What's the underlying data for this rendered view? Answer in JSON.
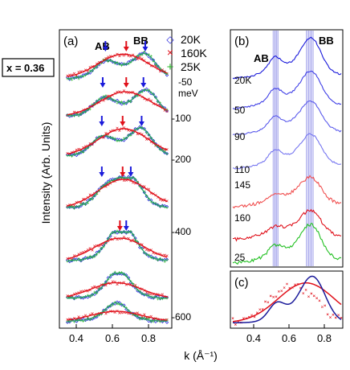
{
  "chart_data": [
    {
      "panel": "(a)",
      "type": "scatter",
      "xlabel": "k (Å⁻¹)",
      "ylabel": "Intensity (Arb. Units)",
      "x_ticks": [
        "0.4",
        "0.6",
        "0.8"
      ],
      "xlim": [
        0.3,
        0.92
      ],
      "box_label": "x = 0.36",
      "peak_labels": [
        "AB",
        "BB"
      ],
      "legend": [
        {
          "label": "20K",
          "color": "#1a1adb",
          "marker": "diamond"
        },
        {
          "label": "160K",
          "color": "#e0101a",
          "marker": "x"
        },
        {
          "label": "25K",
          "color": "#22b422",
          "marker": "+"
        }
      ],
      "energy_unit": "meV",
      "energies": [
        {
          "label": "-50",
          "ab": 0.54,
          "bb": 0.76,
          "red": 0.64,
          "ab_arrow": 0.54,
          "bb_arrow": 0.76,
          "red_arrow": 0.655,
          "amp20": 1.0,
          "amp160": 1.0
        },
        {
          "label": "-100",
          "ab": 0.53,
          "bb": 0.77,
          "red": 0.65,
          "ab_arrow": 0.525,
          "bb_arrow": 0.75,
          "red_arrow": 0.655,
          "amp20": 1.0,
          "amp160": 0.95
        },
        {
          "label": "-200",
          "ab": 0.52,
          "bb": 0.74,
          "red": 0.64,
          "ab_arrow": 0.52,
          "bb_arrow": 0.74,
          "red_arrow": 0.635,
          "amp20": 1.0,
          "amp160": 1.0
        },
        {
          "label": "-400",
          "ab": 0.55,
          "bb": 0.68,
          "red": 0.64,
          "ab_arrow": 0.52,
          "bb_arrow": 0.68,
          "red_arrow": 0.635,
          "amp20": 1.0,
          "amp160": 1.0
        },
        {
          "label": "-400",
          "ab": 0.6,
          "bb": 0.65,
          "red": 0.62,
          "ab_arrow": null,
          "bb_arrow": 0.655,
          "red_arrow": 0.62,
          "amp20": 0.9,
          "amp160": 0.85
        },
        {
          "label": "-600",
          "ab": 0.6,
          "bb": 0.62,
          "red": 0.6,
          "ab_arrow": null,
          "bb_arrow": null,
          "red_arrow": null,
          "amp20": 0.75,
          "amp160": 0.7
        },
        {
          "label": "",
          "ab": 0.6,
          "bb": 0.6,
          "red": 0.6,
          "ab_arrow": null,
          "bb_arrow": null,
          "red_arrow": null,
          "amp20": 0.6,
          "amp160": 0.55
        }
      ]
    },
    {
      "panel": "(b)",
      "type": "line",
      "peak_labels": [
        "AB",
        "BB"
      ],
      "ab_band": [
        0.53,
        0.56
      ],
      "bb_band": [
        0.72,
        0.76
      ],
      "xlim": [
        0.3,
        0.92
      ],
      "curves": [
        {
          "label": "20K",
          "color": "#1a1adb",
          "ab": 1.0,
          "bb": 1.0
        },
        {
          "label": "50",
          "color": "#3f3fe6",
          "ab": 0.95,
          "bb": 0.95
        },
        {
          "label": "90",
          "color": "#5a5aec",
          "ab": 0.9,
          "bb": 0.9
        },
        {
          "label": "110",
          "color": "#7575f0",
          "ab": 0.85,
          "bb": 0.85
        },
        {
          "label": "145",
          "color": "#f05050",
          "ab": 0.45,
          "bb": 0.7
        },
        {
          "label": "160",
          "color": "#e0101a",
          "ab": 0.3,
          "bb": 0.65
        },
        {
          "label": "25",
          "color": "#22c022",
          "ab": 0.6,
          "bb": 0.85
        }
      ]
    },
    {
      "panel": "(c)",
      "type": "line",
      "x_ticks": [
        "0.4",
        "0.6",
        "0.8"
      ],
      "xlim": [
        0.3,
        0.92
      ],
      "series": [
        {
          "color": "#1a1adb",
          "style": "line"
        },
        {
          "color": "#e0101a",
          "style": "line"
        },
        {
          "color": "#e0101a",
          "style": "points"
        }
      ]
    }
  ]
}
